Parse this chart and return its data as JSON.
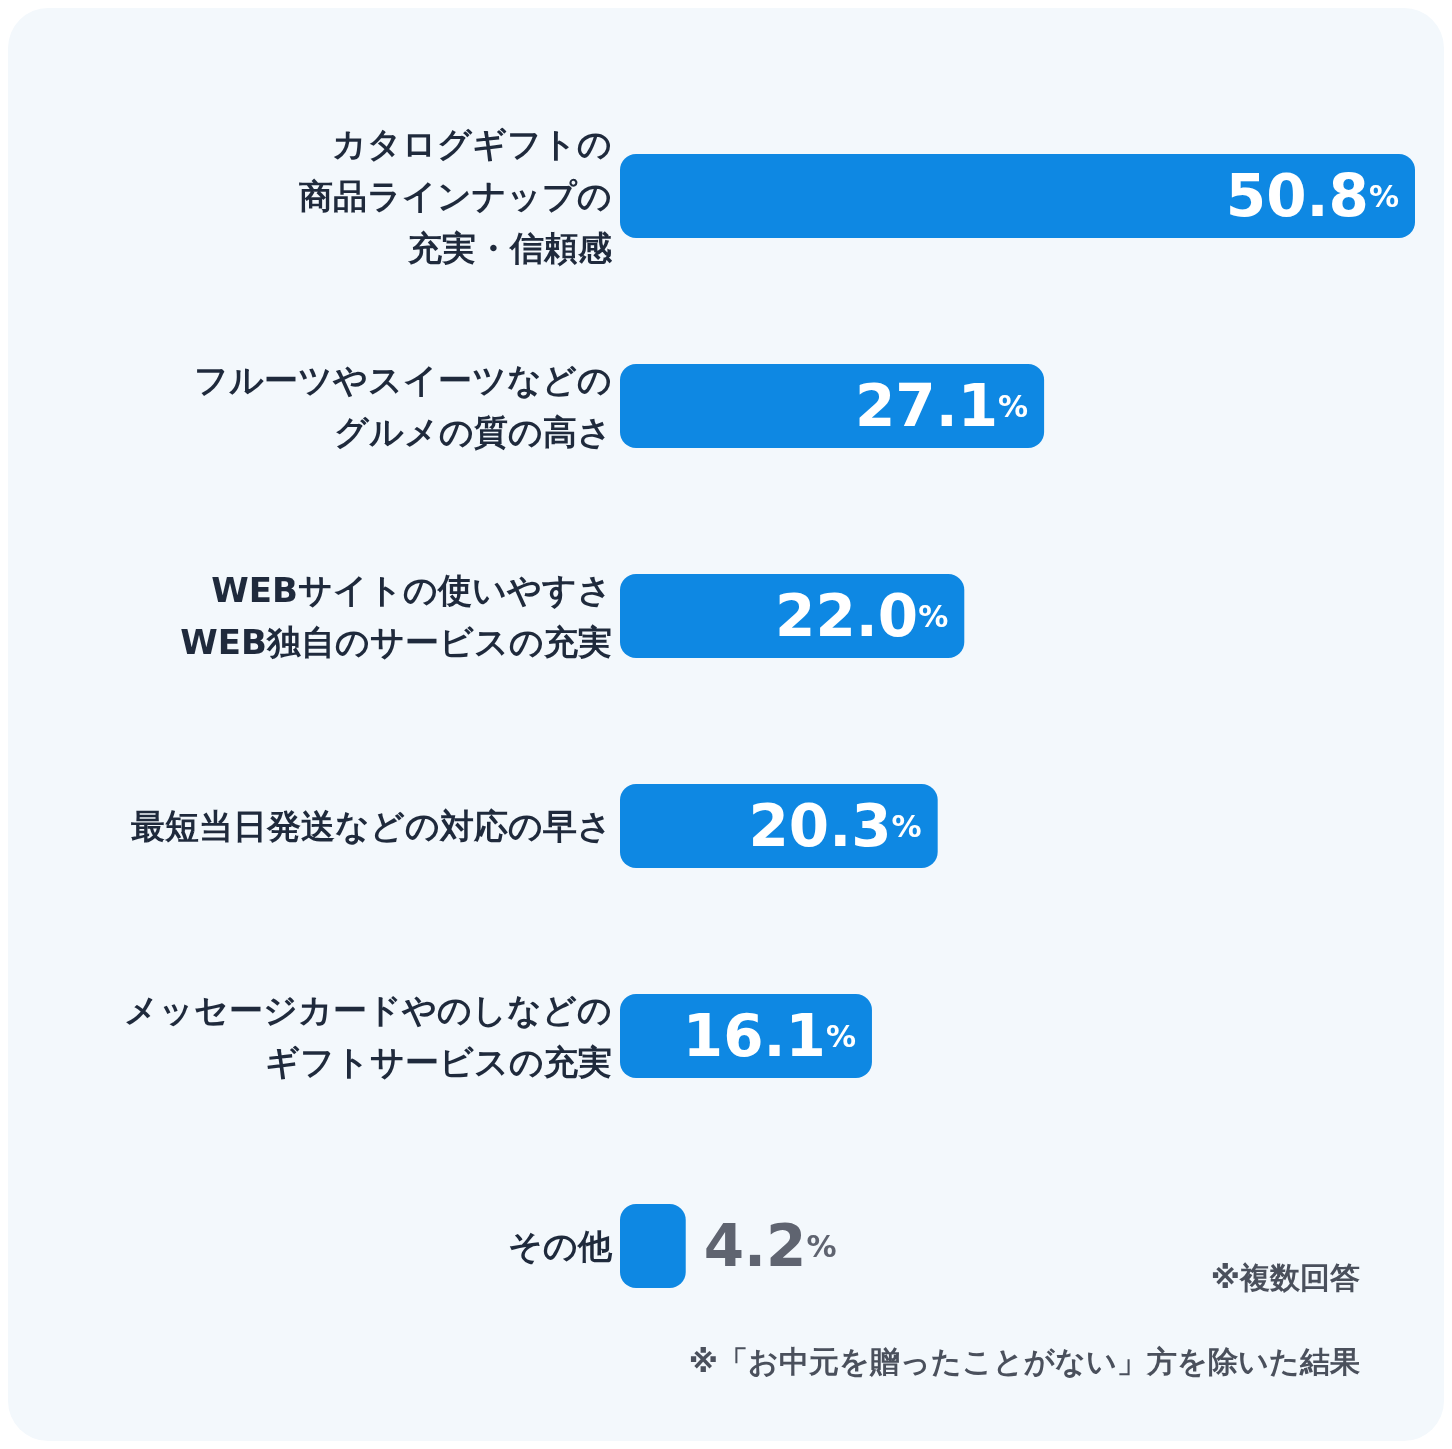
{
  "chart_data": {
    "type": "bar",
    "orientation": "horizontal",
    "categories": [
      "カタログギフトの商品ラインナップの充実・信頼感",
      "フルーツやスイーツなどのグルメの質の高さ",
      "WEBサイトの使いやすさWEB独自のサービスの充実",
      "最短当日発送などの対応の早さ",
      "メッセージカードやのしなどのギフトサービスの充実",
      "その他"
    ],
    "values": [
      50.8,
      27.1,
      22.0,
      20.3,
      16.1,
      4.2
    ],
    "value_labels": [
      "50.8%",
      "27.1%",
      "22.0%",
      "20.3%",
      "16.1%",
      "4.2%"
    ],
    "color": "#0e88e3",
    "annotations": [
      "※複数回答",
      "※「お中元を贈ったことがない」方を除いた結果"
    ]
  }
}
